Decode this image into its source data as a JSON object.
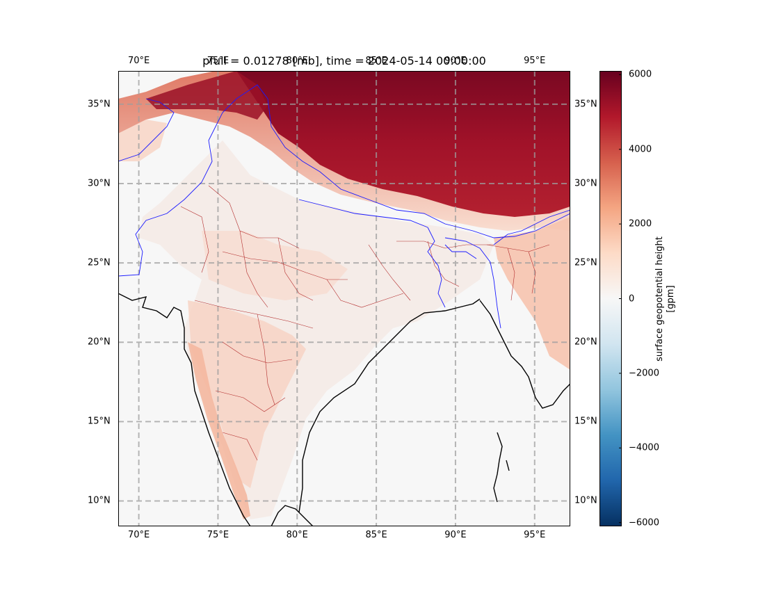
{
  "title": "pfull = 0.01278 [mb], time = 2024-05-14 00:00:00",
  "map": {
    "lon_range": [
      68.7,
      97.25
    ],
    "lat_range": [
      8.4,
      37.1
    ],
    "lon_ticks": [
      {
        "value": 70,
        "label": "70°E"
      },
      {
        "value": 75,
        "label": "75°E"
      },
      {
        "value": 80,
        "label": "80°E"
      },
      {
        "value": 85,
        "label": "85°E"
      },
      {
        "value": 90,
        "label": "90°E"
      },
      {
        "value": 95,
        "label": "95°E"
      }
    ],
    "lat_ticks": [
      {
        "value": 10,
        "label": "10°N"
      },
      {
        "value": 15,
        "label": "15°N"
      },
      {
        "value": 20,
        "label": "20°N"
      },
      {
        "value": 25,
        "label": "25°N"
      },
      {
        "value": 30,
        "label": "30°N"
      },
      {
        "value": 35,
        "label": "35°N"
      }
    ],
    "gridlines": "dashed grey",
    "variable": "surface geopotential height",
    "colormap": "RdBu_r",
    "colors": {
      "coastline": "#000000",
      "borders": "#1a1aff",
      "states": "#b22a2a",
      "ocean": "#f7f7f7"
    }
  },
  "colorbar": {
    "label_line1": "surface geopotential height",
    "label_line2": "[gpm]",
    "range": [
      -6100,
      6100
    ],
    "ticks": [
      {
        "value": 6000,
        "label": "6000"
      },
      {
        "value": 4000,
        "label": "4000"
      },
      {
        "value": 2000,
        "label": "2000"
      },
      {
        "value": 0,
        "label": "0"
      },
      {
        "value": -2000,
        "label": "−2000"
      },
      {
        "value": -4000,
        "label": "−4000"
      },
      {
        "value": -6000,
        "label": "−6000"
      }
    ]
  }
}
